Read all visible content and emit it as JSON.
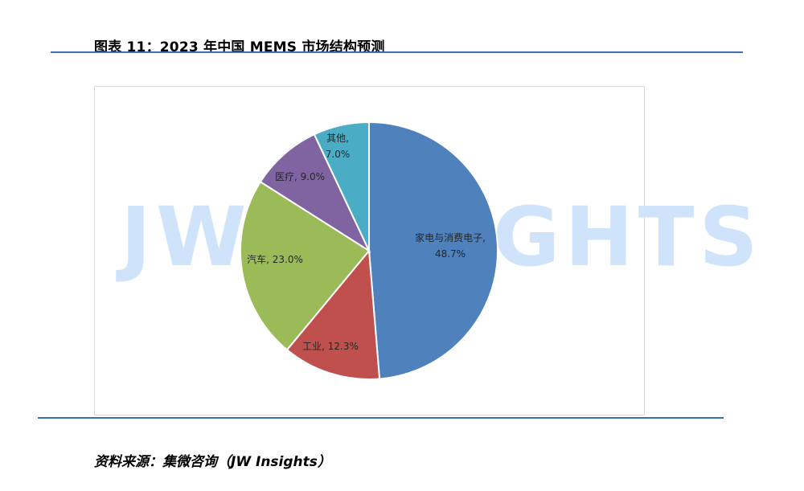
{
  "figure": {
    "title": "图表 11：2023 年中国 MEMS 市场结构预测",
    "source": "资料来源：集微咨询（JW Insights）",
    "watermark": "JW INSIGHTS"
  },
  "chart_data": {
    "type": "pie",
    "title": "",
    "slices": [
      {
        "label": "家电与消费电子",
        "value": 48.7,
        "display": "48.7%",
        "color": "#4f81bd"
      },
      {
        "label": "工业",
        "value": 12.3,
        "display": "12.3%",
        "color": "#c0504d"
      },
      {
        "label": "汽车",
        "value": 23.0,
        "display": "23.0%",
        "color": "#9bbb59"
      },
      {
        "label": "医疗",
        "value": 9.0,
        "display": "9.0%",
        "color": "#8064a2"
      },
      {
        "label": "其他",
        "value": 7.0,
        "display": "7.0%",
        "color": "#4bacc6"
      }
    ],
    "start": "12 o'clock",
    "direction": "clockwise",
    "legend": "none"
  }
}
